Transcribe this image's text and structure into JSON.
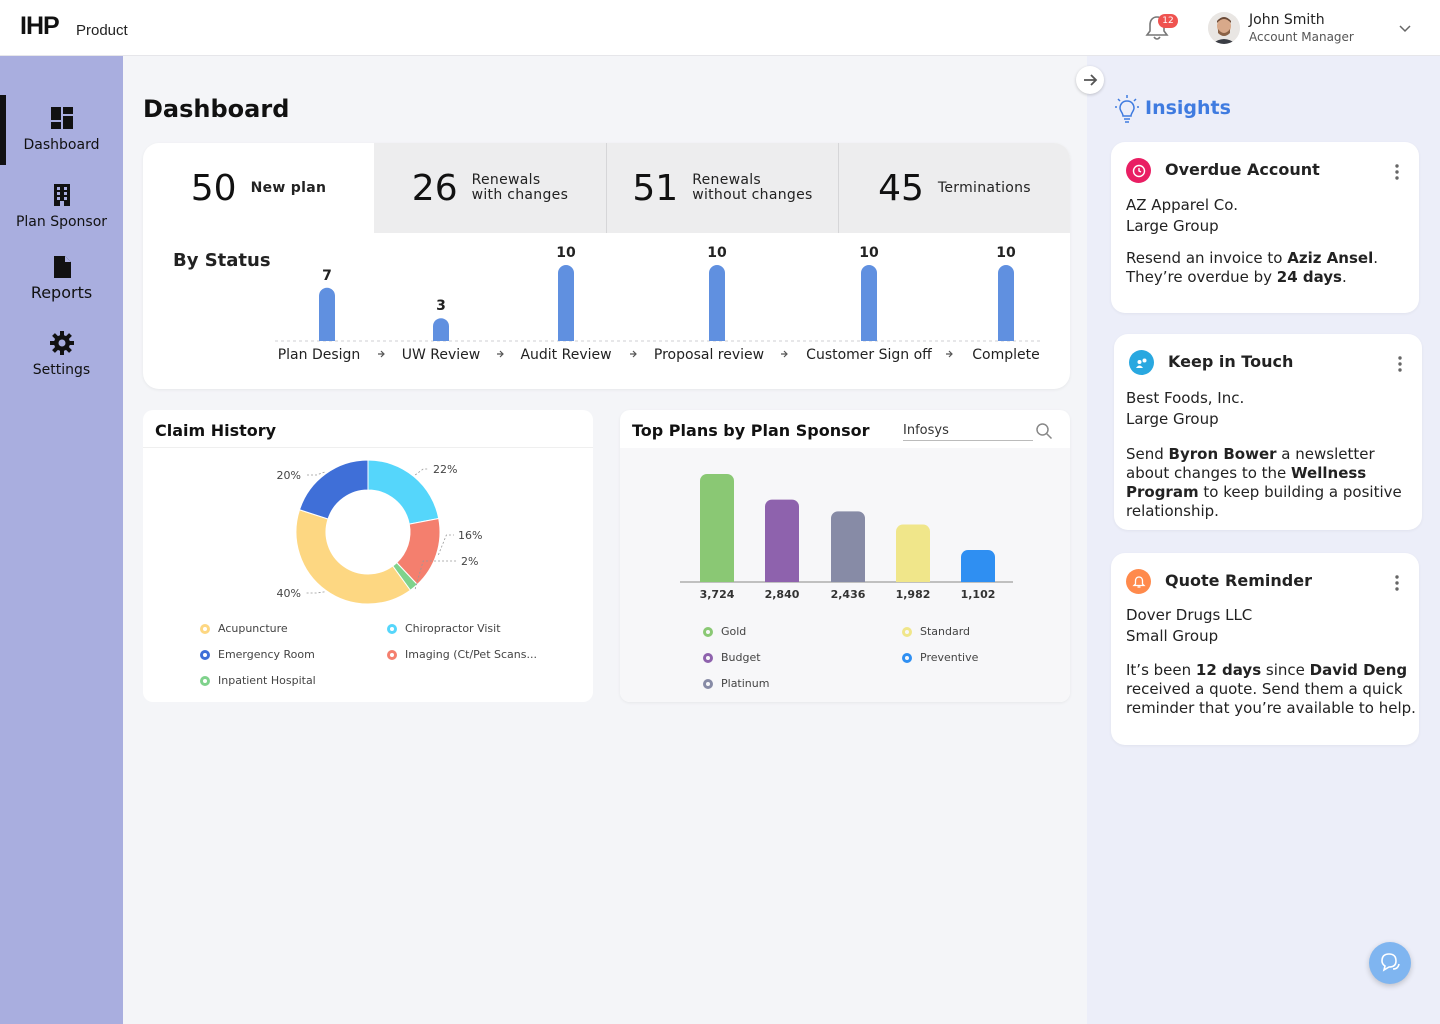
{
  "app": {
    "logo": "IHP",
    "product": "Product"
  },
  "header": {
    "notifications_count": "12",
    "user_name": "John Smith",
    "user_role": "Account Manager"
  },
  "sidebar": {
    "items": [
      {
        "label": "Dashboard",
        "icon": "dashboard-icon",
        "active": true
      },
      {
        "label": "Plan Sponsor",
        "icon": "building-icon",
        "active": false
      },
      {
        "label": "Reports",
        "icon": "document-icon",
        "active": false
      },
      {
        "label": "Settings",
        "icon": "gear-icon",
        "active": false
      }
    ]
  },
  "main": {
    "title": "Dashboard",
    "kpis": [
      {
        "value": "50",
        "label": "New plan"
      },
      {
        "value": "26",
        "label_line1": "Renewals",
        "label_line2": "with changes"
      },
      {
        "value": "51",
        "label_line1": "Renewals",
        "label_line2": "without changes"
      },
      {
        "value": "45",
        "label": "Terminations"
      }
    ],
    "by_status_title": "By Status"
  },
  "claim_history": {
    "title": "Claim History"
  },
  "top_plans": {
    "title": "Top Plans by Plan Sponsor",
    "search_value": "Infosys"
  },
  "insights": {
    "title": "Insights",
    "cards": [
      {
        "title": "Overdue Account",
        "company": "AZ Apparel Co.",
        "group": "Large Group",
        "msg_pre": "Resend an invoice to ",
        "msg_b1": "Aziz Ansel",
        "msg_mid": ". They’re overdue by ",
        "msg_b2": "24 days",
        "msg_post": "."
      },
      {
        "title": "Keep in Touch",
        "company": "Best Foods, Inc.",
        "group": "Large Group",
        "msg_pre": "Send ",
        "msg_b1": "Byron Bower",
        "msg_mid": " a newsletter about changes to the ",
        "msg_b2": "Wellness Program",
        "msg_post": " to keep building a positive relationship."
      },
      {
        "title": "Quote Reminder",
        "company": "Dover Drugs LLC",
        "group": "Small Group",
        "msg_pre": "It’s been ",
        "msg_b1": "12 days",
        "msg_mid": " since ",
        "msg_b2": "David Deng",
        "msg_post": " received a quote. Send them a quick reminder that you’re available to help."
      }
    ]
  },
  "colors": {
    "sidebar": "#a9aedf",
    "accent": "#3f7be0",
    "status_bar": "#6090e0",
    "insights_bg": "#eceef9"
  },
  "chart_data": [
    {
      "type": "bar",
      "title": "By Status",
      "categories": [
        "Plan Design",
        "UW Review",
        "Audit Review",
        "Proposal review",
        "Customer Sign off",
        "Complete"
      ],
      "values": [
        7,
        3,
        10,
        10,
        10,
        10
      ],
      "ylim": [
        0,
        10
      ]
    },
    {
      "type": "pie",
      "title": "Claim History",
      "donut": true,
      "slices": [
        {
          "name": "Chiropractor Visit",
          "value": 22,
          "label": "22%",
          "color": "#55d6fb"
        },
        {
          "name": "Imaging (Ct/Pet Scans...",
          "value": 16,
          "label": "16%",
          "color": "#f47f6e"
        },
        {
          "name": "Inpatient Hospital",
          "value": 2,
          "label": "2%",
          "color": "#7fd28c"
        },
        {
          "name": "Acupuncture",
          "value": 40,
          "label": "40%",
          "color": "#fdd782"
        },
        {
          "name": "Emergency Room",
          "value": 20,
          "label": "20%",
          "color": "#3f6fd8"
        }
      ],
      "legend": [
        "Acupuncture",
        "Chiropractor Visit",
        "Emergency Room",
        "Imaging (Ct/Pet Scans...",
        "Inpatient Hospital"
      ]
    },
    {
      "type": "bar",
      "title": "Top Plans by Plan Sponsor",
      "categories": [
        "Gold",
        "Budget",
        "Platinum",
        "Standard",
        "Preventive"
      ],
      "values": [
        3724,
        2840,
        2436,
        1982,
        1102
      ],
      "value_labels": [
        "3,724",
        "2,840",
        "2,436",
        "1,982",
        "1,102"
      ],
      "colors": [
        "#8ac874",
        "#8e62ad",
        "#878ba6",
        "#f0e68a",
        "#2f8ff2"
      ],
      "ylim": [
        0,
        3724
      ],
      "legend": [
        "Gold",
        "Standard",
        "Budget",
        "Preventive",
        "Platinum"
      ]
    }
  ]
}
